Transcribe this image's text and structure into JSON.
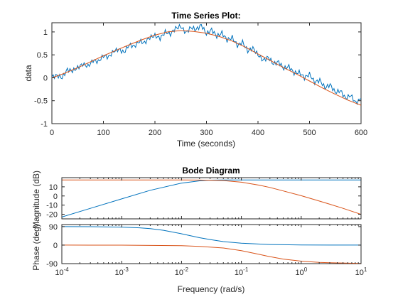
{
  "figure": {
    "background": "#ffffff",
    "axis_color": "#262626"
  },
  "chart_data": [
    {
      "type": "line",
      "title": "Time Series Plot:",
      "xlabel": "Time (seconds)",
      "ylabel": "data",
      "xlim": [
        0,
        600
      ],
      "ylim": [
        -1,
        1.2
      ],
      "xticks": [
        0,
        100,
        200,
        300,
        400,
        500,
        600
      ],
      "xtick_labels": [
        "0",
        "100",
        "200",
        "300",
        "400",
        "500",
        "600"
      ],
      "yticks": [
        -1,
        -0.5,
        0,
        0.5,
        1
      ],
      "ytick_labels": [
        "-1",
        "-0.5",
        "0",
        "0.5",
        "1"
      ],
      "grid": false,
      "series": [
        {
          "color": "#0072BD",
          "style": "noisy",
          "x": [
            0,
            10,
            20,
            30,
            40,
            50,
            60,
            70,
            80,
            90,
            100,
            110,
            120,
            130,
            140,
            150,
            160,
            170,
            180,
            190,
            200,
            210,
            220,
            230,
            240,
            250,
            260,
            270,
            280,
            290,
            300,
            310,
            320,
            330,
            340,
            350,
            360,
            370,
            380,
            390,
            400,
            410,
            420,
            430,
            440,
            450,
            460,
            470,
            480,
            490,
            500,
            510,
            520,
            530,
            540,
            550,
            560,
            570,
            580,
            590,
            600
          ],
          "y": [
            0.02,
            0.05,
            0.0,
            0.18,
            0.15,
            0.22,
            0.3,
            0.25,
            0.38,
            0.35,
            0.48,
            0.45,
            0.58,
            0.62,
            0.55,
            0.72,
            0.68,
            0.8,
            0.76,
            0.88,
            0.92,
            0.86,
            1.0,
            0.95,
            1.08,
            1.12,
            0.98,
            1.1,
            1.05,
            1.15,
            0.95,
            1.05,
            0.9,
            0.98,
            0.82,
            0.88,
            0.7,
            0.78,
            0.58,
            0.65,
            0.5,
            0.38,
            0.45,
            0.3,
            0.35,
            0.2,
            0.25,
            0.1,
            0.12,
            0.0,
            0.08,
            -0.1,
            -0.05,
            -0.22,
            -0.15,
            -0.32,
            -0.28,
            -0.45,
            -0.38,
            -0.55,
            -0.45
          ]
        },
        {
          "color": "#D95319",
          "style": "smooth",
          "x": [
            0,
            25,
            50,
            75,
            100,
            125,
            150,
            175,
            200,
            225,
            250,
            275,
            300,
            325,
            350,
            375,
            400,
            425,
            450,
            475,
            500,
            525,
            550,
            575,
            600
          ],
          "y": [
            0.0,
            0.1,
            0.22,
            0.35,
            0.48,
            0.6,
            0.72,
            0.83,
            0.93,
            1.0,
            1.03,
            1.01,
            0.97,
            0.9,
            0.8,
            0.67,
            0.52,
            0.37,
            0.22,
            0.08,
            -0.07,
            -0.22,
            -0.36,
            -0.49,
            -0.6
          ]
        }
      ]
    },
    {
      "type": "line",
      "title": "Bode Diagram",
      "subplot": "magnitude",
      "ylabel": "Magnitude (dB)",
      "xscale": "log",
      "xlim": [
        0.0001,
        10
      ],
      "ylim": [
        -25,
        20
      ],
      "yticks": [
        -20,
        -10,
        0,
        10
      ],
      "ytick_labels": [
        "-20",
        "-10",
        "0",
        "10"
      ],
      "grid": false,
      "series": [
        {
          "color": "#0072BD",
          "x": [
            0.0001,
            0.0003,
            0.001,
            0.003,
            0.01,
            0.02,
            0.03,
            0.05,
            0.1,
            0.3,
            1,
            3,
            10
          ],
          "y": [
            -23,
            -13.5,
            -3.2,
            6.2,
            14,
            16.5,
            17.3,
            17.5,
            17.5,
            17.5,
            17.5,
            17.5,
            17.5
          ]
        },
        {
          "color": "#D95319",
          "x": [
            0.0001,
            0.001,
            0.01,
            0.02,
            0.05,
            0.1,
            0.2,
            0.3,
            0.5,
            1,
            2,
            3,
            5,
            10
          ],
          "y": [
            17.5,
            17.5,
            17.5,
            17.4,
            16.8,
            15.0,
            11.8,
            9.3,
            5.5,
            0.3,
            -5.5,
            -9.0,
            -13.5,
            -20
          ]
        }
      ]
    },
    {
      "type": "line",
      "subplot": "phase",
      "xlabel": "Frequency  (rad/s)",
      "ylabel": "Phase (deg)",
      "xscale": "log",
      "xlim": [
        0.0001,
        10
      ],
      "ylim": [
        -90,
        100
      ],
      "xticks": [
        0.0001,
        0.001,
        0.01,
        0.1,
        1,
        10
      ],
      "xtick_labels": [
        {
          "base": "10",
          "exp": "-4"
        },
        {
          "base": "10",
          "exp": "-3"
        },
        {
          "base": "10",
          "exp": "-2"
        },
        {
          "base": "10",
          "exp": "-1"
        },
        {
          "base": "10",
          "exp": "0"
        },
        {
          "base": "10",
          "exp": "1"
        }
      ],
      "yticks": [
        -90,
        0,
        90
      ],
      "ytick_labels": [
        "-90",
        "0",
        "90"
      ],
      "grid": false,
      "series": [
        {
          "color": "#0072BD",
          "x": [
            0.0001,
            0.0003,
            0.001,
            0.002,
            0.003,
            0.005,
            0.01,
            0.02,
            0.03,
            0.05,
            0.1,
            0.3,
            1,
            3,
            10
          ],
          "y": [
            90,
            89.5,
            87.5,
            84,
            80,
            72,
            55,
            36,
            27,
            17,
            9,
            3,
            1,
            0.3,
            0
          ]
        },
        {
          "color": "#D95319",
          "x": [
            0.0001,
            0.001,
            0.01,
            0.02,
            0.05,
            0.1,
            0.2,
            0.3,
            0.5,
            1,
            2,
            3,
            10
          ],
          "y": [
            0,
            -0.3,
            -3,
            -6,
            -14,
            -27,
            -45,
            -56,
            -68,
            -78,
            -84,
            -86,
            -89
          ]
        }
      ]
    }
  ]
}
